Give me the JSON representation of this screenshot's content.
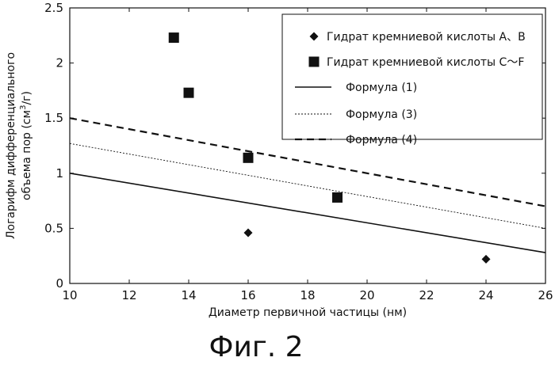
{
  "chart_data": {
    "type": "scatter",
    "xlabel": "Диаметр первичной частицы (нм)",
    "ylabel_line1": "Логарифм дифференциального",
    "ylabel_line2": "объема пор (см",
    "ylabel_sup": "3",
    "ylabel_end": "/г)",
    "xlim": [
      10,
      26
    ],
    "ylim": [
      0,
      2.5
    ],
    "xticks": [
      10,
      12,
      14,
      16,
      18,
      20,
      22,
      24,
      26
    ],
    "xtick_labels": [
      "10",
      "12",
      "14",
      "16",
      "18",
      "20",
      "22",
      "24",
      "26"
    ],
    "yticks": [
      0,
      0.5,
      1,
      1.5,
      2,
      2.5
    ],
    "ytick_labels": [
      "0",
      "0.5",
      "1",
      "1.5",
      "2",
      "2.5"
    ],
    "legend_position": "top-right",
    "series": [
      {
        "name": "Гидрат кремниевой кислоты A、B",
        "kind": "points",
        "marker": "diamond",
        "x": [
          16,
          24
        ],
        "y": [
          0.46,
          0.22
        ]
      },
      {
        "name": "Гидрат кремниевой кислоты C〜F",
        "kind": "points",
        "marker": "square",
        "x": [
          13.5,
          14,
          16,
          19
        ],
        "y": [
          2.23,
          1.73,
          1.14,
          0.78
        ]
      },
      {
        "name": "Формула (1)",
        "kind": "line",
        "style": "solid",
        "x": [
          10,
          26
        ],
        "y": [
          1.0,
          0.28
        ]
      },
      {
        "name": "Формула (3)",
        "kind": "line",
        "style": "dotted",
        "x": [
          10,
          26
        ],
        "y": [
          1.27,
          0.5
        ]
      },
      {
        "name": "Формула (4)",
        "kind": "line",
        "style": "dashed",
        "x": [
          10,
          26
        ],
        "y": [
          1.5,
          0.7
        ]
      }
    ],
    "caption": "Фиг. 2"
  },
  "colors": {
    "ink": "#111111",
    "background": "#ffffff"
  }
}
